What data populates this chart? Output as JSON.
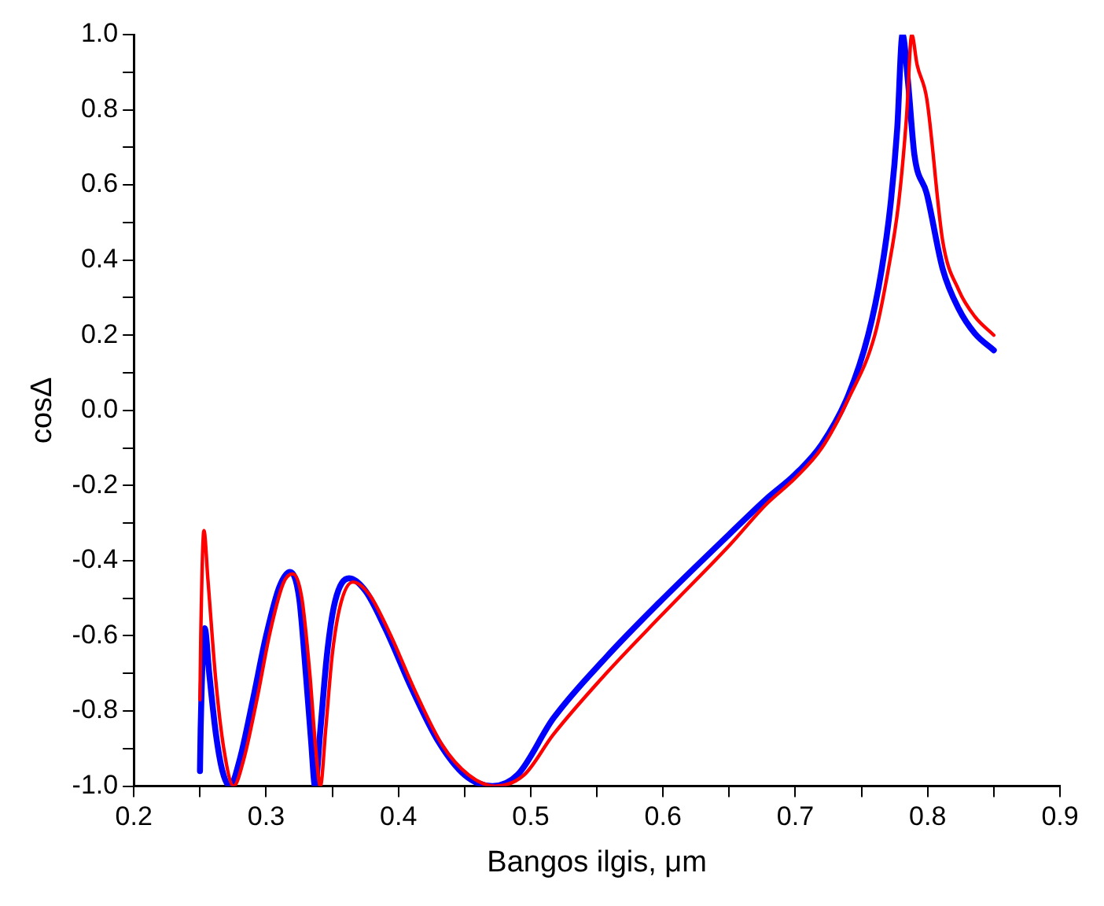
{
  "chart_data": {
    "type": "line",
    "xlabel": "Bangos ilgis, μm",
    "ylabel": "cosΔ",
    "xlim": [
      0.2,
      0.9
    ],
    "ylim": [
      -1.0,
      1.0
    ],
    "xticks": [
      {
        "value": 0.2,
        "label": "0.2"
      },
      {
        "value": 0.25,
        "label": null
      },
      {
        "value": 0.3,
        "label": "0.3"
      },
      {
        "value": 0.35,
        "label": null
      },
      {
        "value": 0.4,
        "label": "0.4"
      },
      {
        "value": 0.45,
        "label": null
      },
      {
        "value": 0.5,
        "label": "0.5"
      },
      {
        "value": 0.55,
        "label": null
      },
      {
        "value": 0.6,
        "label": "0.6"
      },
      {
        "value": 0.65,
        "label": null
      },
      {
        "value": 0.7,
        "label": "0.7"
      },
      {
        "value": 0.75,
        "label": null
      },
      {
        "value": 0.8,
        "label": "0.8"
      },
      {
        "value": 0.85,
        "label": null
      },
      {
        "value": 0.9,
        "label": "0.9"
      }
    ],
    "yticks": [
      {
        "value": -1,
        "label": "-1.0"
      },
      {
        "value": -0.9,
        "label": null
      },
      {
        "value": -0.8,
        "label": "-0.8"
      },
      {
        "value": -0.7,
        "label": null
      },
      {
        "value": -0.6,
        "label": "-0.6"
      },
      {
        "value": -0.5,
        "label": null
      },
      {
        "value": -0.4,
        "label": "-0.4"
      },
      {
        "value": -0.3,
        "label": null
      },
      {
        "value": -0.2,
        "label": "-0.2"
      },
      {
        "value": -0.1,
        "label": null
      },
      {
        "value": 0,
        "label": "0.0"
      },
      {
        "value": 0.1,
        "label": null
      },
      {
        "value": 0.2,
        "label": "0.2"
      },
      {
        "value": 0.3,
        "label": null
      },
      {
        "value": 0.4,
        "label": "0.4"
      },
      {
        "value": 0.5,
        "label": null
      },
      {
        "value": 0.6,
        "label": "0.6"
      },
      {
        "value": 0.7,
        "label": null
      },
      {
        "value": 0.8,
        "label": "0.8"
      },
      {
        "value": 0.9,
        "label": null
      },
      {
        "value": 1,
        "label": "1.0"
      }
    ],
    "grid": false,
    "legend": false,
    "marker": "none",
    "line_style": "solid",
    "series": [
      {
        "color": "#0000ff",
        "x": [
          0.25,
          0.2505,
          0.2536,
          0.257,
          0.262,
          0.267,
          0.2726,
          0.28,
          0.29,
          0.3,
          0.31,
          0.318,
          0.325,
          0.33,
          0.334,
          0.337,
          0.341,
          0.346,
          0.352,
          0.3626,
          0.375,
          0.39,
          0.41,
          0.43,
          0.45,
          0.471,
          0.49,
          0.517,
          0.557,
          0.5975,
          0.65,
          0.678,
          0.7,
          0.72,
          0.74,
          0.755,
          0.765,
          0.772,
          0.777,
          0.781,
          0.785,
          0.79,
          0.7993,
          0.8114,
          0.8235,
          0.8356,
          0.85
        ],
        "values": [
          -0.96,
          -0.85,
          -0.58,
          -0.7,
          -0.86,
          -0.96,
          -1.0,
          -0.93,
          -0.77,
          -0.6,
          -0.47,
          -0.43,
          -0.5,
          -0.7,
          -0.88,
          -1.0,
          -0.85,
          -0.65,
          -0.51,
          -0.447,
          -0.48,
          -0.58,
          -0.74,
          -0.88,
          -0.97,
          -1.0,
          -0.97,
          -0.82,
          -0.657,
          -0.51,
          -0.33,
          -0.236,
          -0.17,
          -0.09,
          0.04,
          0.2,
          0.37,
          0.55,
          0.75,
          1.0,
          0.88,
          0.68,
          0.577,
          0.376,
          0.27,
          0.205,
          0.16
        ]
      },
      {
        "color": "#ff0000",
        "x": [
          0.25,
          0.2506,
          0.253,
          0.256,
          0.262,
          0.268,
          0.2754,
          0.283,
          0.293,
          0.303,
          0.313,
          0.32,
          0.327,
          0.333,
          0.337,
          0.341,
          0.345,
          0.35,
          0.356,
          0.3655,
          0.378,
          0.393,
          0.413,
          0.433,
          0.453,
          0.473,
          0.495,
          0.517,
          0.557,
          0.5975,
          0.65,
          0.678,
          0.7,
          0.72,
          0.74,
          0.76,
          0.77,
          0.778,
          0.784,
          0.788,
          0.792,
          0.7993,
          0.8114,
          0.8235,
          0.8356,
          0.85
        ],
        "values": [
          -0.77,
          -0.6,
          -0.32,
          -0.45,
          -0.72,
          -0.9,
          -1.0,
          -0.93,
          -0.77,
          -0.59,
          -0.46,
          -0.435,
          -0.5,
          -0.7,
          -0.88,
          -1.0,
          -0.85,
          -0.65,
          -0.52,
          -0.457,
          -0.49,
          -0.59,
          -0.75,
          -0.89,
          -0.97,
          -1.0,
          -0.97,
          -0.863,
          -0.7,
          -0.55,
          -0.36,
          -0.25,
          -0.18,
          -0.1,
          0.03,
          0.2,
          0.37,
          0.55,
          0.78,
          1.0,
          0.92,
          0.83,
          0.45,
          0.32,
          0.25,
          0.2
        ]
      }
    ]
  }
}
